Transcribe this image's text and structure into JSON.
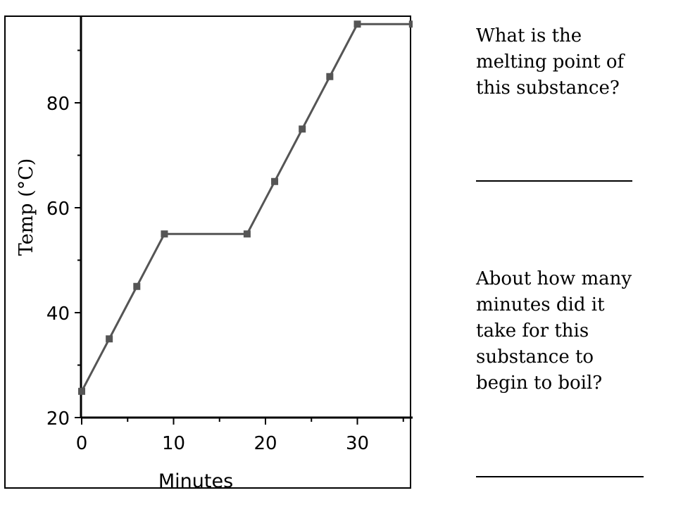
{
  "chart_data": {
    "type": "line",
    "xlabel": "Minutes",
    "ylabel": "Temp (°C)",
    "xlim": [
      0,
      36
    ],
    "ylim": [
      20,
      95
    ],
    "xticks": [
      0,
      10,
      20,
      30
    ],
    "yticks": [
      20,
      40,
      60,
      80
    ],
    "grid": false,
    "series": [
      {
        "x": [
          0,
          3,
          6,
          9,
          18,
          21,
          24,
          27,
          30,
          36
        ],
        "y": [
          25,
          35,
          45,
          55,
          55,
          65,
          75,
          85,
          95,
          95
        ]
      }
    ],
    "line_color": "#555555",
    "marker_color": "#555555"
  },
  "questions": {
    "q1": "What is the\nmelting point of\nthis substance?",
    "q2": "About how many\nminutes did it\ntake for this\nsubstance to\nbegin to boil?"
  }
}
